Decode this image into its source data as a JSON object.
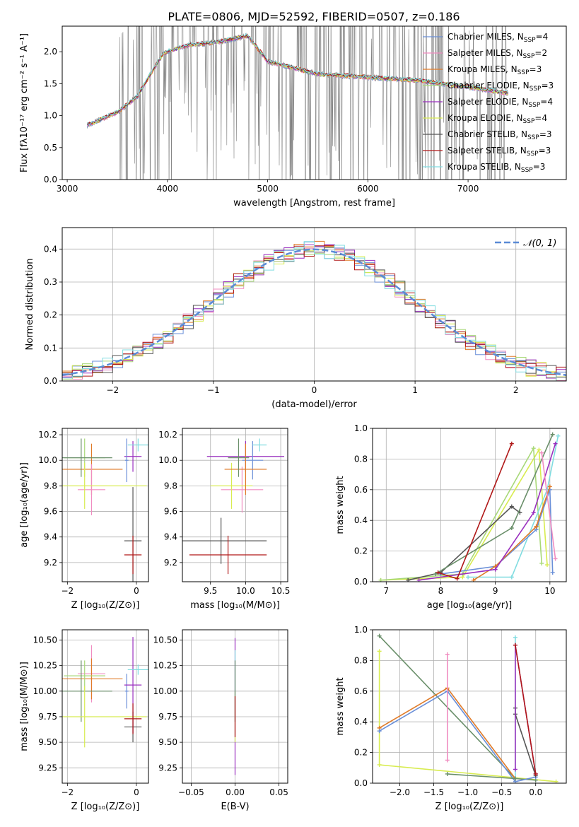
{
  "figure": {
    "title": "PLATE=0806, MJD=52592, FIBERID=0507, z=0.186"
  },
  "legend": [
    {
      "label": "Chabrier MILES, N",
      "sub": "SSP",
      "suffix": "=4",
      "color": "#6a8fd8"
    },
    {
      "label": "Salpeter MILES, N",
      "sub": "SSP",
      "suffix": "=2",
      "color": "#f08cc0"
    },
    {
      "label": "Kroupa MILES, N",
      "sub": "SSP",
      "suffix": "=3",
      "color": "#e07b28"
    },
    {
      "label": "Chabrier ELODIE, N",
      "sub": "SSP",
      "suffix": "=3",
      "color": "#a8d878"
    },
    {
      "label": "Salpeter ELODIE, N",
      "sub": "SSP",
      "suffix": "=4",
      "color": "#9a2fbf"
    },
    {
      "label": "Kroupa ELODIE, N",
      "sub": "SSP",
      "suffix": "=4",
      "color": "#d8ec50"
    },
    {
      "label": "Chabrier STELIB, N",
      "sub": "SSP",
      "suffix": "=3",
      "color": "#555555"
    },
    {
      "label": "Salpeter STELIB, N",
      "sub": "SSP",
      "suffix": "=3",
      "color": "#b01818"
    },
    {
      "label": "Kroupa STELIB, N",
      "sub": "SSP",
      "suffix": "=3",
      "color": "#80dce0"
    }
  ],
  "chart_data": [
    {
      "id": "spectrum",
      "type": "line",
      "xlabel": "wavelength [Angstrom, rest frame]",
      "ylabel": "Flux [fλ10⁻¹⁷ erg cm⁻² s⁻¹ A⁻¹]",
      "xlim": [
        2950,
        7980
      ],
      "ylim": [
        0,
        2.4
      ],
      "xticks": [
        3000,
        4000,
        5000,
        6000,
        7000
      ],
      "yticks": [
        0.0,
        0.5,
        1.0,
        1.5,
        2.0
      ],
      "data_color": "#808080",
      "data_range": [
        3200,
        7400
      ],
      "model_range": [
        3200,
        7400
      ],
      "model_shape_x": [
        3200,
        3500,
        3700,
        3850,
        3950,
        4000,
        4200,
        4500,
        4800,
        4900,
        5000,
        5500,
        6000,
        6500,
        7000,
        7400
      ],
      "model_shape_y": [
        0.85,
        1.05,
        1.3,
        1.7,
        1.95,
        2.0,
        2.1,
        2.15,
        2.25,
        2.05,
        1.85,
        1.65,
        1.6,
        1.55,
        1.45,
        1.35
      ]
    },
    {
      "id": "residuals",
      "type": "step",
      "xlabel": "(data-model)/error",
      "ylabel": "Normed distribution",
      "xlim": [
        -2.5,
        2.5
      ],
      "ylim": [
        0,
        0.465
      ],
      "xticks": [
        -2,
        -1,
        0,
        1,
        2
      ],
      "yticks": [
        0.0,
        0.1,
        0.2,
        0.3,
        0.4
      ],
      "grid": true,
      "legend_label": "𝒩(0, 1)",
      "gaussian": {
        "mean": 0,
        "sigma": 1,
        "color": "#5b8bd6"
      }
    },
    {
      "id": "age_vs_Z",
      "type": "errorbar",
      "xlabel": "Z [log₁₀(Z/Z⊙)]",
      "ylabel": "age  [log₁₀(age/yr)]",
      "xlim": [
        -2.15,
        0.35
      ],
      "ylim": [
        9.05,
        10.25
      ],
      "xticks": [
        -2,
        0
      ],
      "yticks": [
        9.2,
        9.4,
        9.6,
        9.8,
        10.0,
        10.2
      ],
      "grid": true,
      "points": [
        {
          "x": -1.3,
          "xerr": 0.9,
          "y": 9.93,
          "yerr": 0.2,
          "color": "#e07b28"
        },
        {
          "x": -1.3,
          "xerr": 0.4,
          "y": 9.77,
          "yerr": 0.2,
          "color": "#f08cc0"
        },
        {
          "x": -1.5,
          "xerr": 0.6,
          "y": 10.02,
          "yerr": 0.15,
          "color": "#a8d878"
        },
        {
          "x": -1.5,
          "xerr": 1.8,
          "y": 9.8,
          "yerr": 0.18,
          "color": "#d8ec50"
        },
        {
          "x": -1.6,
          "xerr": 0.9,
          "y": 10.02,
          "yerr": 0.15,
          "color": "#6a8f6a"
        },
        {
          "x": -0.1,
          "xerr": 0.25,
          "y": 10.03,
          "yerr": 0.12,
          "color": "#9a2fbf"
        },
        {
          "x": -0.28,
          "xerr": 0.05,
          "y": 10.0,
          "yerr": 0.17,
          "color": "#6a8fd8"
        },
        {
          "x": 0.05,
          "xerr": 0.3,
          "y": 10.12,
          "yerr": 0.05,
          "color": "#80dce0"
        },
        {
          "x": -0.1,
          "xerr": 0.25,
          "y": 9.37,
          "yerr": 0.42,
          "color": "#555555"
        },
        {
          "x": -0.1,
          "xerr": 0.25,
          "y": 9.26,
          "yerr": 0.15,
          "color": "#b01818"
        }
      ]
    },
    {
      "id": "age_vs_mass",
      "type": "errorbar",
      "xlabel": "mass [log₁₀(M/M⊙)]",
      "ylabel": "",
      "xlim": [
        9.1,
        10.6
      ],
      "ylim": [
        9.05,
        10.25
      ],
      "xticks": [
        9.5,
        10.0,
        10.5
      ],
      "yticks": [
        9.2,
        9.4,
        9.6,
        9.8,
        10.0,
        10.2
      ],
      "grid": true,
      "points": [
        {
          "x": 10.0,
          "xerr": 0.55,
          "y": 10.03,
          "yerr": 0.12,
          "color": "#9a2fbf"
        },
        {
          "x": 10.1,
          "xerr": 0.15,
          "y": 10.0,
          "yerr": 0.15,
          "color": "#6a8fd8"
        },
        {
          "x": 10.2,
          "xerr": 0.1,
          "y": 10.12,
          "yerr": 0.05,
          "color": "#80dce0"
        },
        {
          "x": 9.95,
          "xerr": 0.3,
          "y": 9.77,
          "yerr": 0.18,
          "color": "#f08cc0"
        },
        {
          "x": 9.8,
          "xerr": 0.3,
          "y": 9.8,
          "yerr": 0.18,
          "color": "#d8ec50"
        },
        {
          "x": 10.0,
          "xerr": 0.3,
          "y": 9.93,
          "yerr": 0.2,
          "color": "#e07b28"
        },
        {
          "x": 9.9,
          "xerr": 0.15,
          "y": 10.02,
          "yerr": 0.15,
          "color": "#6a8f6a"
        },
        {
          "x": 9.65,
          "xerr": 0.65,
          "y": 9.37,
          "yerr": 0.18,
          "color": "#555555"
        },
        {
          "x": 9.75,
          "xerr": 0.55,
          "y": 9.26,
          "yerr": 0.15,
          "color": "#b01818"
        }
      ]
    },
    {
      "id": "massweight_vs_age",
      "type": "line",
      "xlabel": "age  [log₁₀(age/yr)]",
      "ylabel": "mass weight",
      "xlim": [
        6.75,
        10.3
      ],
      "ylim": [
        0,
        1.0
      ],
      "xticks": [
        7,
        8,
        9,
        10
      ],
      "yticks": [
        0.0,
        0.2,
        0.4,
        0.6,
        0.8,
        1.0
      ],
      "grid": true,
      "series": [
        {
          "color": "#d8ec50",
          "x": [
            6.9,
            8.4,
            9.8,
            9.95
          ],
          "y": [
            0.01,
            0.03,
            0.86,
            0.11
          ]
        },
        {
          "color": "#a8d878",
          "x": [
            6.9,
            8.4,
            9.7,
            9.85
          ],
          "y": [
            0.01,
            0.05,
            0.87,
            0.12
          ]
        },
        {
          "color": "#80dce0",
          "x": [
            8.5,
            9.3,
            9.95,
            10.15
          ],
          "y": [
            0.03,
            0.03,
            0.6,
            0.95
          ]
        },
        {
          "color": "#6a8fd8",
          "x": [
            8.0,
            9.0,
            9.75,
            10.0,
            10.05
          ],
          "y": [
            0.05,
            0.1,
            0.34,
            0.6,
            0.06
          ]
        },
        {
          "color": "#e07b28",
          "x": [
            8.6,
            9.0,
            9.75,
            10.0
          ],
          "y": [
            0.01,
            0.1,
            0.36,
            0.62
          ]
        },
        {
          "color": "#9a2fbf",
          "x": [
            7.6,
            9.0,
            9.7,
            10.1
          ],
          "y": [
            0.01,
            0.08,
            0.45,
            0.9
          ]
        },
        {
          "color": "#555555",
          "x": [
            7.4,
            8.0,
            9.3,
            9.45
          ],
          "y": [
            0.01,
            0.06,
            0.49,
            0.45
          ]
        },
        {
          "color": "#6a8f6a",
          "x": [
            7.9,
            9.3,
            10.05
          ],
          "y": [
            0.05,
            0.35,
            0.96
          ]
        },
        {
          "color": "#b01818",
          "x": [
            7.95,
            8.3,
            9.3
          ],
          "y": [
            0.06,
            0.02,
            0.9
          ]
        },
        {
          "color": "#f08cc0",
          "x": [
            9.85,
            10.1
          ],
          "y": [
            0.84,
            0.15
          ]
        }
      ]
    },
    {
      "id": "mass_vs_Z",
      "type": "errorbar",
      "xlabel": "Z [log₁₀(Z/Z⊙)]",
      "ylabel": "mass [log₁₀(M/M⊙)]",
      "xlim": [
        -2.15,
        0.35
      ],
      "ylim": [
        9.1,
        10.6
      ],
      "xticks": [
        -2,
        0
      ],
      "yticks": [
        9.25,
        9.5,
        9.75,
        10.0,
        10.25,
        10.5
      ],
      "grid": true,
      "points": [
        {
          "x": -1.3,
          "xerr": 0.4,
          "y": 10.17,
          "yerr": 0.28,
          "color": "#f08cc0"
        },
        {
          "x": -1.3,
          "xerr": 0.9,
          "y": 10.12,
          "yerr": 0.2,
          "color": "#e07b28"
        },
        {
          "x": -1.5,
          "xerr": 0.6,
          "y": 10.15,
          "yerr": 0.15,
          "color": "#a8d878"
        },
        {
          "x": -1.6,
          "xerr": 0.9,
          "y": 10.0,
          "yerr": 0.3,
          "color": "#6a8f6a"
        },
        {
          "x": -1.5,
          "xerr": 1.8,
          "y": 9.75,
          "yerr": 0.3,
          "color": "#d8ec50"
        },
        {
          "x": -0.28,
          "xerr": 0.05,
          "y": 10.0,
          "yerr": 0.17,
          "color": "#6a8fd8"
        },
        {
          "x": -0.1,
          "xerr": 0.25,
          "y": 10.06,
          "yerr": 0.47,
          "color": "#9a2fbf"
        },
        {
          "x": 0.05,
          "xerr": 0.3,
          "y": 10.21,
          "yerr": 0.05,
          "color": "#80dce0"
        },
        {
          "x": -0.1,
          "xerr": 0.25,
          "y": 9.65,
          "yerr": 0.15,
          "color": "#555555"
        },
        {
          "x": -0.1,
          "xerr": 0.25,
          "y": 9.73,
          "yerr": 0.15,
          "color": "#b01818"
        }
      ]
    },
    {
      "id": "mass_vs_EBV",
      "type": "errorbar",
      "xlabel": "E(B-V)",
      "ylabel": "",
      "xlim": [
        -0.06,
        0.06
      ],
      "ylim": [
        9.1,
        10.6
      ],
      "xticks": [
        -0.05,
        0.0,
        0.05
      ],
      "yticks": [
        9.25,
        9.5,
        9.75,
        10.0,
        10.25,
        10.5
      ],
      "grid": true,
      "points": [
        {
          "x": 0.0,
          "xerr": 0,
          "y": 9.85,
          "yerr": 0.67,
          "color": "#9a2fbf"
        },
        {
          "x": 0.0,
          "xerr": 0,
          "y": 10.05,
          "yerr": 0.35,
          "color": "#80dce0"
        },
        {
          "x": 0.0,
          "xerr": 0,
          "y": 9.75,
          "yerr": 0.25,
          "color": "#d8ec50"
        },
        {
          "x": 0.0,
          "xerr": 0,
          "y": 10.0,
          "yerr": 0.3,
          "color": "#6a8f6a"
        },
        {
          "x": 0.0,
          "xerr": 0,
          "y": 9.75,
          "yerr": 0.2,
          "color": "#b01818"
        }
      ]
    },
    {
      "id": "massweight_vs_Z",
      "type": "line",
      "xlabel": "Z [log₁₀(Z/Z⊙)]",
      "ylabel": "mass weight",
      "xlim": [
        -2.4,
        0.45
      ],
      "ylim": [
        0,
        1.0
      ],
      "xticks": [
        -2.0,
        -1.5,
        -1.0,
        -0.5,
        0.0
      ],
      "yticks": [
        0.0,
        0.2,
        0.4,
        0.6,
        0.8,
        1.0
      ],
      "grid": true,
      "series": [
        {
          "color": "#d8ec50",
          "x": [
            -2.3,
            -2.3,
            0.3
          ],
          "y": [
            0.86,
            0.12,
            0.01
          ]
        },
        {
          "color": "#6a8f6a",
          "x": [
            -2.3,
            -0.3,
            0.0
          ],
          "y": [
            0.96,
            0.03,
            0.02
          ]
        },
        {
          "color": "#e07b28",
          "x": [
            -2.3,
            -1.3,
            -0.3
          ],
          "y": [
            0.36,
            0.62,
            0.03
          ]
        },
        {
          "color": "#6a8fd8",
          "x": [
            -2.3,
            -1.3,
            -0.3,
            0.0
          ],
          "y": [
            0.34,
            0.6,
            0.01,
            0.04
          ]
        },
        {
          "color": "#f08cc0",
          "x": [
            -1.3,
            -1.3
          ],
          "y": [
            0.84,
            0.15
          ]
        },
        {
          "color": "#80dce0",
          "x": [
            -0.3,
            -0.3
          ],
          "y": [
            0.95,
            0.03
          ]
        },
        {
          "color": "#555555",
          "x": [
            -0.3,
            -0.3,
            0.0
          ],
          "y": [
            0.49,
            0.45,
            0.05
          ]
        },
        {
          "color": "#9a2fbf",
          "x": [
            -0.3,
            -0.3,
            0.0
          ],
          "y": [
            0.09,
            0.9,
            0.06
          ]
        },
        {
          "color": "#b01818",
          "x": [
            -0.3,
            0.0
          ],
          "y": [
            0.9,
            0.06
          ]
        },
        {
          "color": "#6a8f6a",
          "x": [
            -1.3,
            -0.3
          ],
          "y": [
            0.06,
            0.03
          ]
        }
      ]
    }
  ]
}
